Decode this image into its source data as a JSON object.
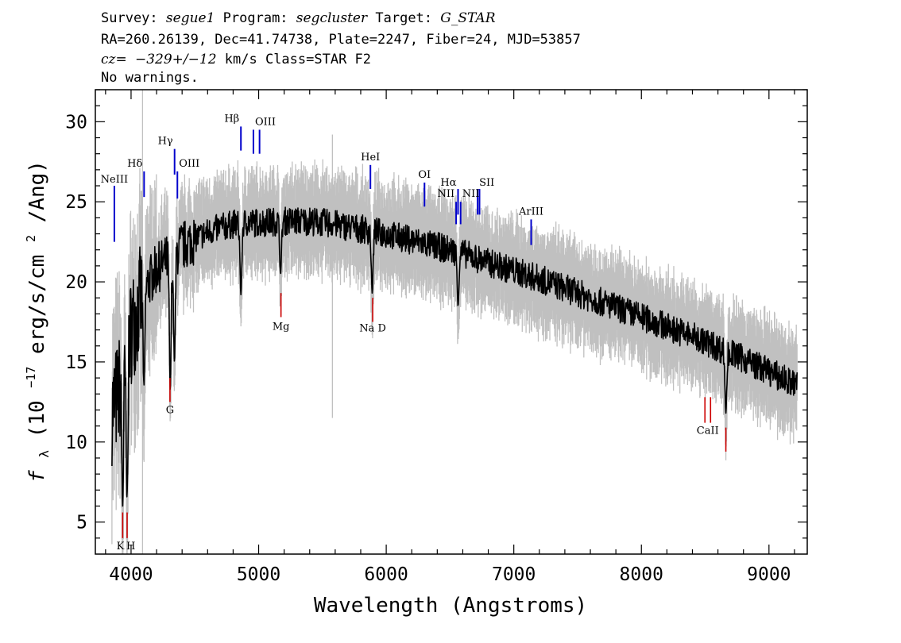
{
  "header": {
    "survey_label": "Survey:",
    "survey": "segue1",
    "program_label": "Program:",
    "program": "segcluster",
    "target_label": "Target:",
    "target": "G_STAR",
    "line2": "RA=260.26139, Dec=41.74738, Plate=2247, Fiber=24, MJD=53857",
    "cz_label": "cz=",
    "cz_value": "−329+/−12",
    "cz_rest": " km/s Class=STAR F2",
    "line4": "No warnings."
  },
  "colors": {
    "flux": "#000000",
    "error": "#c0c0c0",
    "emission": "#0000cc",
    "absorption": "#cc0000"
  },
  "chart_data": {
    "type": "line",
    "xlabel": "Wavelength (Angstroms)",
    "ylabel_symbol": "f",
    "ylabel_subscript": "λ",
    "ylabel_open": " (10",
    "ylabel_exp": "−17",
    "ylabel_units": " erg/s/cm",
    "ylabel_exp2": "2",
    "ylabel_close": "/Ang)",
    "xlim": [
      3720,
      9300
    ],
    "ylim": [
      3,
      32
    ],
    "xticks": [
      4000,
      5000,
      6000,
      7000,
      8000,
      9000
    ],
    "xtick_labels": [
      "4000",
      "5000",
      "6000",
      "7000",
      "8000",
      "9000"
    ],
    "yticks": [
      5,
      10,
      15,
      20,
      25,
      30
    ],
    "ytick_labels": [
      "5",
      "10",
      "15",
      "20",
      "25",
      "30"
    ],
    "grid": false,
    "continuum_x": [
      3850,
      3900,
      3950,
      4000,
      4100,
      4200,
      4300,
      4400,
      4500,
      4600,
      4700,
      4800,
      4900,
      5000,
      5200,
      5400,
      5600,
      5800,
      6000,
      6200,
      6400,
      6600,
      6800,
      7000,
      7200,
      7400,
      7600,
      7800,
      8000,
      8200,
      8400,
      8600,
      8800,
      9000,
      9200
    ],
    "continuum_y": [
      12,
      13,
      15,
      17,
      19.5,
      20.8,
      21.5,
      22.2,
      22.7,
      23.1,
      23.4,
      23.6,
      23.7,
      23.7,
      23.8,
      23.8,
      23.6,
      23.3,
      23.0,
      22.6,
      22.2,
      21.8,
      21.2,
      20.7,
      20.2,
      19.6,
      19.0,
      18.4,
      17.8,
      17.2,
      16.6,
      15.9,
      15.2,
      14.4,
      13.6
    ],
    "absorption_dips": [
      {
        "x": 3934,
        "y": 6.0
      },
      {
        "x": 3968,
        "y": 6.5
      },
      {
        "x": 4101,
        "y": 13.5
      },
      {
        "x": 4307,
        "y": 13.2
      },
      {
        "x": 4340,
        "y": 15.0
      },
      {
        "x": 4861,
        "y": 19.2
      },
      {
        "x": 5172,
        "y": 20.5
      },
      {
        "x": 5890,
        "y": 19.3
      },
      {
        "x": 6563,
        "y": 18.5
      },
      {
        "x": 8662,
        "y": 11.8
      }
    ],
    "spikes": [
      {
        "x": 4090,
        "y_low": 3.0,
        "y_high": 32.0
      },
      {
        "x": 5578,
        "y_low": 11.5,
        "y_high": 29.2
      }
    ],
    "emission_lines": [
      {
        "label": "NeIII",
        "x": 3869,
        "y_low": 22.5,
        "y_high": 26.0,
        "label_y": 26.2
      },
      {
        "label": "Hδ",
        "x": 4102,
        "y_low": 25.3,
        "y_high": 26.9,
        "label_y": 27.2
      },
      {
        "label": "Hγ",
        "x": 4341,
        "y_low": 26.7,
        "y_high": 28.3,
        "label_y": 28.6
      },
      {
        "label": "OIII",
        "x": 4363,
        "y_low": 25.2,
        "y_high": 26.9,
        "label_y": 27.2
      },
      {
        "label": "Hβ",
        "x": 4861,
        "y_low": 28.2,
        "y_high": 29.7,
        "label_y": 30.0
      },
      {
        "label": "OIII",
        "x": 4959,
        "y_low": 28.0,
        "y_high": 29.5,
        "label_y": 29.8
      },
      {
        "label": "OIII",
        "x": 5007,
        "y_low": 28.0,
        "y_high": 29.5,
        "label_y": 29.8
      },
      {
        "label": "HeI",
        "x": 5876,
        "y_low": 25.8,
        "y_high": 27.3,
        "label_y": 27.6
      },
      {
        "label": "OI",
        "x": 6300,
        "y_low": 24.7,
        "y_high": 26.2,
        "label_y": 26.5
      },
      {
        "label": "NII",
        "x": 6548,
        "y_low": 23.6,
        "y_high": 25.0,
        "label_y": 25.3
      },
      {
        "label": "Hα",
        "x": 6563,
        "y_low": 24.2,
        "y_high": 25.8,
        "label_y": 26.0
      },
      {
        "label": "NII",
        "x": 6583,
        "y_low": 23.6,
        "y_high": 25.0,
        "label_y": 25.3
      },
      {
        "label": "SII",
        "x": 6716,
        "y_low": 24.2,
        "y_high": 25.8,
        "label_y": 26.0
      },
      {
        "label": "SII",
        "x": 6731,
        "y_low": 24.2,
        "y_high": 25.8,
        "label_y": 26.0
      },
      {
        "label": "ArIII",
        "x": 7136,
        "y_low": 22.3,
        "y_high": 23.9,
        "label_y": 24.2
      }
    ],
    "absorption_lines": [
      {
        "label": "K",
        "x": 3934,
        "y_low": 4.0,
        "y_high": 5.6,
        "label_y": 3.3
      },
      {
        "label": "H",
        "x": 3969,
        "y_low": 4.0,
        "y_high": 5.6,
        "label_y": 3.3
      },
      {
        "label": "G",
        "x": 4305,
        "y_low": 12.5,
        "y_high": 14.0,
        "label_y": 11.8
      },
      {
        "label": "Mg",
        "x": 5175,
        "y_low": 17.8,
        "y_high": 19.3,
        "label_y": 17.0
      },
      {
        "label": "Na D",
        "x": 5894,
        "y_low": 17.5,
        "y_high": 19.0,
        "label_y": 16.9
      },
      {
        "label": "CaII",
        "x": 8498,
        "y_low": 11.2,
        "y_high": 12.8,
        "label_y": 10.5
      },
      {
        "label": "CaII",
        "x": 8542,
        "y_low": 11.2,
        "y_high": 12.8,
        "label_y": null
      },
      {
        "label": "CaII",
        "x": 8662,
        "y_low": 9.4,
        "y_high": 10.9,
        "label_y": null
      }
    ]
  }
}
